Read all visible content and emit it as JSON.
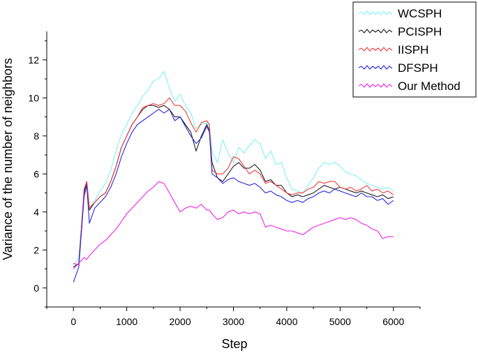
{
  "chart_data": {
    "type": "line",
    "title": "",
    "xlabel": "Step",
    "ylabel": "Variance of the number of neighbors",
    "xlim": [
      -500,
      6500
    ],
    "ylim": [
      -1,
      13.5
    ],
    "xticks": [
      0,
      1000,
      2000,
      3000,
      4000,
      5000,
      6000
    ],
    "yticks": [
      0,
      2,
      4,
      6,
      8,
      10,
      12
    ],
    "legend_position": "top-right",
    "grid": false,
    "series": [
      {
        "name": "WCSPH",
        "color": "#7ff2f2",
        "x": [
          0,
          100,
          200,
          250,
          300,
          400,
          500,
          600,
          700,
          800,
          900,
          1000,
          1100,
          1200,
          1300,
          1400,
          1500,
          1600,
          1700,
          1800,
          1900,
          2000,
          2100,
          2200,
          2300,
          2400,
          2500,
          2550,
          2600,
          2700,
          2800,
          2900,
          3000,
          3100,
          3200,
          3300,
          3400,
          3500,
          3600,
          3700,
          3800,
          3900,
          4000,
          4100,
          4200,
          4300,
          4400,
          4500,
          4600,
          4700,
          4800,
          4900,
          5000,
          5100,
          5200,
          5300,
          5400,
          5500,
          5600,
          5700,
          5800,
          5900,
          6000
        ],
        "y": [
          1.2,
          1.6,
          4.9,
          5.6,
          4.2,
          4.6,
          5.1,
          5.5,
          6.2,
          7.2,
          8.1,
          8.6,
          9.2,
          9.6,
          10.1,
          10.4,
          10.9,
          11.0,
          11.4,
          10.5,
          9.8,
          10.2,
          9.6,
          9.2,
          8.4,
          8.6,
          8.7,
          8.5,
          7.2,
          6.6,
          7.8,
          7.1,
          6.6,
          7.4,
          7.1,
          7.5,
          7.8,
          7.6,
          6.8,
          7.2,
          6.5,
          6.6,
          5.8,
          5.2,
          5.1,
          5.0,
          5.4,
          5.8,
          6.3,
          6.6,
          6.5,
          6.6,
          6.4,
          6.1,
          6.0,
          5.9,
          5.7,
          5.5,
          5.4,
          5.3,
          5.2,
          5.3,
          5.1
        ]
      },
      {
        "name": "PCISPH",
        "color": "#202020",
        "x": [
          0,
          100,
          200,
          250,
          300,
          400,
          500,
          600,
          700,
          800,
          900,
          1000,
          1100,
          1200,
          1300,
          1400,
          1500,
          1600,
          1700,
          1800,
          1900,
          2000,
          2100,
          2200,
          2300,
          2400,
          2500,
          2550,
          2600,
          2700,
          2800,
          2900,
          3000,
          3100,
          3200,
          3300,
          3400,
          3500,
          3600,
          3700,
          3800,
          3900,
          4000,
          4100,
          4200,
          4300,
          4400,
          4500,
          4600,
          4700,
          4800,
          4900,
          5000,
          5100,
          5200,
          5300,
          5400,
          5500,
          5600,
          5700,
          5800,
          5900,
          6000
        ],
        "y": [
          1.1,
          1.3,
          5.0,
          5.6,
          4.1,
          4.5,
          4.8,
          5.0,
          5.6,
          6.4,
          7.4,
          8.0,
          8.6,
          9.0,
          9.4,
          9.6,
          9.6,
          9.5,
          9.6,
          9.4,
          9.0,
          9.0,
          8.6,
          8.2,
          7.2,
          8.0,
          8.6,
          8.3,
          6.6,
          5.8,
          5.6,
          6.0,
          6.4,
          6.6,
          6.3,
          6.3,
          6.5,
          6.2,
          5.6,
          5.7,
          5.4,
          5.4,
          5.0,
          4.8,
          4.9,
          4.8,
          4.9,
          5.0,
          5.2,
          5.4,
          5.3,
          5.2,
          5.3,
          5.2,
          5.1,
          5.0,
          5.1,
          5.0,
          4.9,
          4.8,
          4.9,
          4.7,
          4.8
        ]
      },
      {
        "name": "IISPH",
        "color": "#f03c3c",
        "x": [
          0,
          100,
          200,
          250,
          300,
          400,
          500,
          600,
          700,
          800,
          900,
          1000,
          1100,
          1200,
          1300,
          1400,
          1500,
          1600,
          1700,
          1800,
          1900,
          2000,
          2100,
          2200,
          2300,
          2400,
          2500,
          2550,
          2600,
          2700,
          2800,
          2900,
          3000,
          3100,
          3200,
          3300,
          3400,
          3500,
          3600,
          3700,
          3800,
          3900,
          4000,
          4100,
          4200,
          4300,
          4400,
          4500,
          4600,
          4700,
          4800,
          4900,
          5000,
          5100,
          5200,
          5300,
          5400,
          5500,
          5600,
          5700,
          5800,
          5900,
          6000
        ],
        "y": [
          1.3,
          1.2,
          5.2,
          5.6,
          4.2,
          4.5,
          4.8,
          5.0,
          5.6,
          6.4,
          7.4,
          8.0,
          8.6,
          9.0,
          9.5,
          9.6,
          9.7,
          9.6,
          9.7,
          10.0,
          9.6,
          9.6,
          9.3,
          8.7,
          8.2,
          8.7,
          8.8,
          8.6,
          6.2,
          6.0,
          6.0,
          6.3,
          6.9,
          6.8,
          6.4,
          6.0,
          6.2,
          6.0,
          5.5,
          5.6,
          5.4,
          5.2,
          5.0,
          4.9,
          5.0,
          5.0,
          5.2,
          5.3,
          5.6,
          5.5,
          5.6,
          5.6,
          5.3,
          5.2,
          5.3,
          5.1,
          5.2,
          5.4,
          5.1,
          5.2,
          5.0,
          5.1,
          4.9
        ]
      },
      {
        "name": "DFSPH",
        "color": "#2828e0",
        "x": [
          0,
          100,
          200,
          250,
          300,
          400,
          500,
          600,
          700,
          800,
          900,
          1000,
          1100,
          1200,
          1300,
          1400,
          1500,
          1600,
          1700,
          1800,
          1900,
          2000,
          2100,
          2200,
          2300,
          2400,
          2500,
          2550,
          2600,
          2700,
          2800,
          2900,
          3000,
          3100,
          3200,
          3300,
          3400,
          3500,
          3600,
          3700,
          3800,
          3900,
          4000,
          4100,
          4200,
          4300,
          4400,
          4500,
          4600,
          4700,
          4800,
          4900,
          5000,
          5100,
          5200,
          5300,
          5400,
          5500,
          5600,
          5700,
          5800,
          5900,
          6000
        ],
        "y": [
          0.3,
          1.1,
          4.8,
          5.4,
          3.4,
          4.2,
          4.5,
          4.8,
          5.3,
          6.0,
          6.9,
          7.6,
          8.2,
          8.6,
          8.8,
          9.0,
          9.2,
          9.4,
          9.2,
          9.4,
          8.8,
          9.0,
          8.5,
          8.0,
          7.6,
          7.9,
          8.5,
          8.2,
          6.0,
          5.8,
          5.5,
          5.7,
          5.8,
          5.6,
          5.5,
          5.4,
          5.5,
          5.3,
          5.0,
          5.1,
          4.9,
          4.8,
          4.6,
          4.5,
          4.6,
          4.5,
          4.7,
          4.8,
          5.0,
          5.1,
          5.0,
          5.2,
          5.1,
          5.0,
          4.9,
          4.8,
          5.0,
          4.8,
          4.8,
          4.6,
          4.7,
          4.4,
          4.6
        ]
      },
      {
        "name": "Our Method",
        "color": "#ee22ee",
        "x": [
          0,
          100,
          200,
          250,
          300,
          400,
          500,
          600,
          700,
          800,
          900,
          1000,
          1100,
          1200,
          1300,
          1400,
          1500,
          1600,
          1700,
          1800,
          1900,
          2000,
          2100,
          2200,
          2300,
          2400,
          2500,
          2550,
          2600,
          2700,
          2800,
          2900,
          3000,
          3100,
          3200,
          3300,
          3400,
          3500,
          3600,
          3700,
          3800,
          3900,
          4000,
          4100,
          4200,
          4300,
          4400,
          4500,
          4600,
          4700,
          4800,
          4900,
          5000,
          5100,
          5200,
          5300,
          5400,
          5500,
          5600,
          5700,
          5800,
          5900,
          6000
        ],
        "y": [
          1.0,
          1.3,
          1.6,
          1.5,
          1.7,
          2.0,
          2.3,
          2.5,
          2.8,
          3.1,
          3.5,
          3.9,
          4.2,
          4.5,
          4.8,
          5.1,
          5.3,
          5.6,
          5.5,
          5.0,
          4.5,
          4.0,
          4.2,
          4.3,
          4.2,
          4.4,
          4.1,
          4.1,
          3.9,
          3.6,
          3.7,
          4.0,
          4.1,
          3.9,
          4.0,
          3.9,
          4.0,
          3.9,
          3.2,
          3.3,
          3.2,
          3.1,
          3.0,
          3.0,
          2.9,
          2.8,
          3.0,
          3.2,
          3.3,
          3.4,
          3.5,
          3.6,
          3.7,
          3.6,
          3.7,
          3.6,
          3.4,
          3.3,
          3.1,
          3.0,
          2.6,
          2.7,
          2.7
        ]
      }
    ]
  }
}
